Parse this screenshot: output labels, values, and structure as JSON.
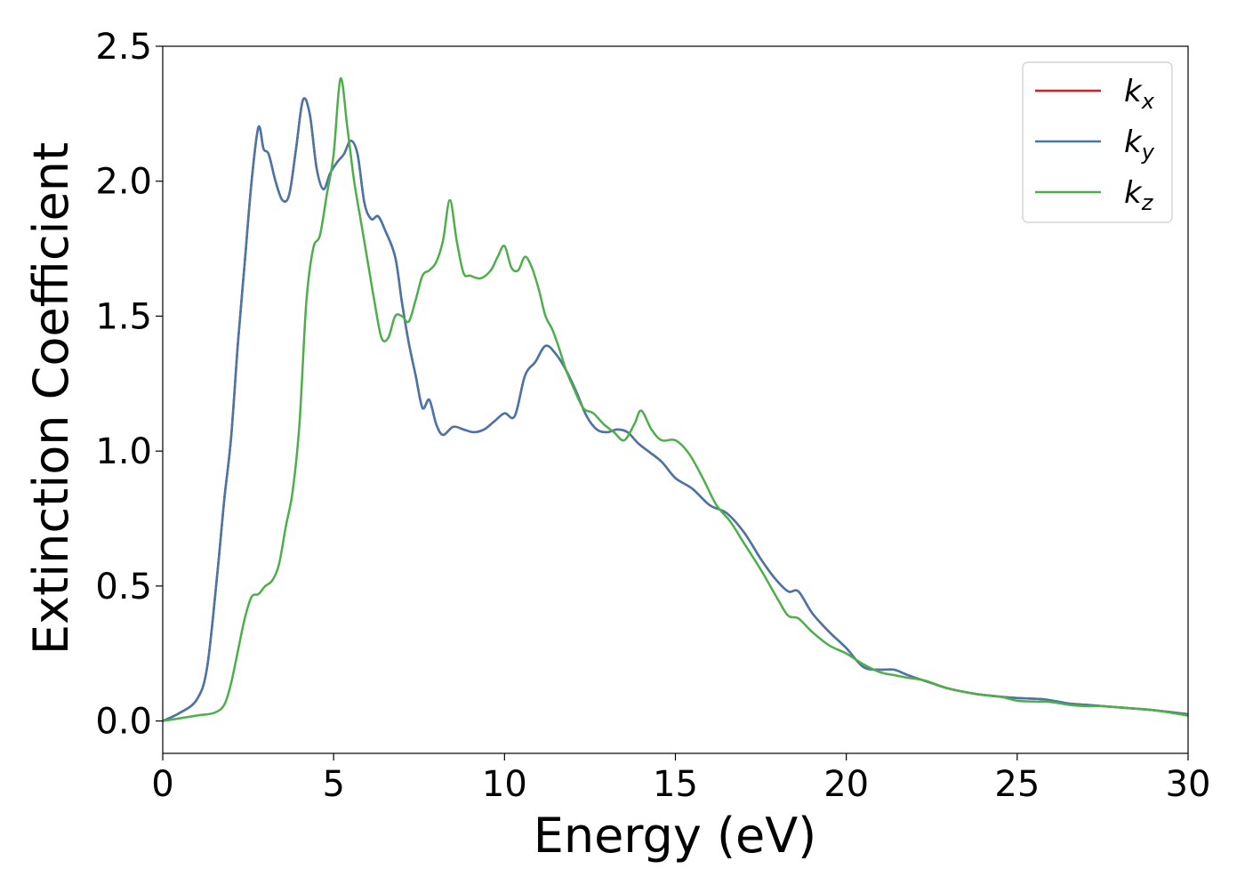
{
  "chart_data": {
    "type": "line",
    "title": "",
    "xlabel": "Energy (eV)",
    "ylabel": "Extinction Coefficient",
    "xlim": [
      0,
      30
    ],
    "ylim": [
      -0.12,
      2.5
    ],
    "xticks": [
      0,
      5,
      10,
      15,
      20,
      25,
      30
    ],
    "yticks": [
      0.0,
      0.5,
      1.0,
      1.5,
      2.0,
      2.5
    ],
    "xtick_labels": [
      "0",
      "5",
      "10",
      "15",
      "20",
      "25",
      "30"
    ],
    "ytick_labels": [
      "0.0",
      "0.5",
      "1.0",
      "1.5",
      "2.0",
      "2.5"
    ],
    "grid": false,
    "legend_position": "top-right",
    "series": [
      {
        "name": "k_x",
        "label_base": "k",
        "label_sub": "x",
        "color": "#e41a1c",
        "x": [
          0,
          0.5,
          1.0,
          1.3,
          1.6,
          1.8,
          2.0,
          2.2,
          2.4,
          2.6,
          2.8,
          2.95,
          3.1,
          3.3,
          3.5,
          3.7,
          3.9,
          4.1,
          4.3,
          4.5,
          4.7,
          4.9,
          5.1,
          5.3,
          5.5,
          5.7,
          5.9,
          6.1,
          6.3,
          6.5,
          6.8,
          7.0,
          7.2,
          7.4,
          7.6,
          7.8,
          8.0,
          8.2,
          8.5,
          8.8,
          9.1,
          9.4,
          9.7,
          10.0,
          10.3,
          10.6,
          10.9,
          11.2,
          11.5,
          11.8,
          12.1,
          12.4,
          12.7,
          13.0,
          13.3,
          13.6,
          13.9,
          14.2,
          14.6,
          15.0,
          15.5,
          16.0,
          16.5,
          17.0,
          17.5,
          17.9,
          18.3,
          18.6,
          19.0,
          19.5,
          20.0,
          20.5,
          21.0,
          21.4,
          21.8,
          22.5,
          23.0,
          23.8,
          24.5,
          25.0,
          25.8,
          26.5,
          27.0,
          27.5,
          28.0,
          29.0,
          30.0
        ],
        "y": [
          0.0,
          0.03,
          0.08,
          0.2,
          0.55,
          0.82,
          1.05,
          1.4,
          1.7,
          2.0,
          2.2,
          2.12,
          2.1,
          2.0,
          1.93,
          1.95,
          2.12,
          2.3,
          2.25,
          2.05,
          1.97,
          2.03,
          2.07,
          2.1,
          2.15,
          2.1,
          1.92,
          1.86,
          1.87,
          1.82,
          1.72,
          1.55,
          1.4,
          1.28,
          1.16,
          1.19,
          1.1,
          1.06,
          1.09,
          1.08,
          1.07,
          1.08,
          1.11,
          1.14,
          1.13,
          1.28,
          1.33,
          1.39,
          1.36,
          1.3,
          1.22,
          1.13,
          1.08,
          1.07,
          1.08,
          1.07,
          1.03,
          1.0,
          0.96,
          0.9,
          0.86,
          0.8,
          0.77,
          0.7,
          0.6,
          0.53,
          0.48,
          0.48,
          0.4,
          0.33,
          0.27,
          0.2,
          0.19,
          0.19,
          0.17,
          0.14,
          0.12,
          0.1,
          0.09,
          0.085,
          0.08,
          0.065,
          0.06,
          0.055,
          0.05,
          0.04,
          0.025
        ]
      },
      {
        "name": "k_y",
        "label_base": "k",
        "label_sub": "y",
        "color": "#4477aa",
        "x": [
          0,
          0.5,
          1.0,
          1.3,
          1.6,
          1.8,
          2.0,
          2.2,
          2.4,
          2.6,
          2.8,
          2.95,
          3.1,
          3.3,
          3.5,
          3.7,
          3.9,
          4.1,
          4.3,
          4.5,
          4.7,
          4.9,
          5.1,
          5.3,
          5.5,
          5.7,
          5.9,
          6.1,
          6.3,
          6.5,
          6.8,
          7.0,
          7.2,
          7.4,
          7.6,
          7.8,
          8.0,
          8.2,
          8.5,
          8.8,
          9.1,
          9.4,
          9.7,
          10.0,
          10.3,
          10.6,
          10.9,
          11.2,
          11.5,
          11.8,
          12.1,
          12.4,
          12.7,
          13.0,
          13.3,
          13.6,
          13.9,
          14.2,
          14.6,
          15.0,
          15.5,
          16.0,
          16.5,
          17.0,
          17.5,
          17.9,
          18.3,
          18.6,
          19.0,
          19.5,
          20.0,
          20.5,
          21.0,
          21.4,
          21.8,
          22.5,
          23.0,
          23.8,
          24.5,
          25.0,
          25.8,
          26.5,
          27.0,
          27.5,
          28.0,
          29.0,
          30.0
        ],
        "y": [
          0.0,
          0.03,
          0.08,
          0.2,
          0.55,
          0.82,
          1.05,
          1.4,
          1.7,
          2.0,
          2.2,
          2.12,
          2.1,
          2.0,
          1.93,
          1.95,
          2.12,
          2.3,
          2.25,
          2.05,
          1.97,
          2.03,
          2.07,
          2.1,
          2.15,
          2.1,
          1.92,
          1.86,
          1.87,
          1.82,
          1.72,
          1.55,
          1.4,
          1.28,
          1.16,
          1.19,
          1.1,
          1.06,
          1.09,
          1.08,
          1.07,
          1.08,
          1.11,
          1.14,
          1.13,
          1.28,
          1.33,
          1.39,
          1.36,
          1.3,
          1.22,
          1.13,
          1.08,
          1.07,
          1.08,
          1.07,
          1.03,
          1.0,
          0.96,
          0.9,
          0.86,
          0.8,
          0.77,
          0.7,
          0.6,
          0.53,
          0.48,
          0.48,
          0.4,
          0.33,
          0.27,
          0.2,
          0.19,
          0.19,
          0.17,
          0.14,
          0.12,
          0.1,
          0.09,
          0.085,
          0.08,
          0.065,
          0.06,
          0.055,
          0.05,
          0.04,
          0.025
        ]
      },
      {
        "name": "k_z",
        "label_base": "k",
        "label_sub": "z",
        "color": "#4daf4a",
        "x": [
          0,
          1.0,
          1.5,
          1.8,
          2.0,
          2.2,
          2.4,
          2.6,
          2.8,
          3.0,
          3.2,
          3.4,
          3.6,
          3.8,
          4.0,
          4.2,
          4.4,
          4.6,
          4.8,
          5.0,
          5.2,
          5.4,
          5.6,
          5.8,
          6.0,
          6.2,
          6.4,
          6.6,
          6.8,
          7.0,
          7.2,
          7.4,
          7.6,
          7.8,
          8.0,
          8.2,
          8.4,
          8.6,
          8.8,
          9.0,
          9.3,
          9.6,
          9.8,
          10.0,
          10.2,
          10.4,
          10.6,
          10.8,
          11.0,
          11.2,
          11.4,
          11.6,
          11.8,
          12.0,
          12.3,
          12.6,
          12.9,
          13.2,
          13.5,
          13.8,
          14.0,
          14.3,
          14.6,
          15.0,
          15.4,
          15.8,
          16.2,
          16.6,
          17.0,
          17.5,
          18.0,
          18.3,
          18.6,
          19.0,
          19.5,
          20.0,
          20.5,
          21.0,
          21.4,
          21.8,
          22.3,
          23.0,
          23.8,
          24.5,
          25.0,
          25.5,
          26.0,
          26.5,
          27.0,
          27.5,
          28.0,
          29.0,
          30.0
        ],
        "y": [
          0.0,
          0.02,
          0.03,
          0.06,
          0.14,
          0.26,
          0.38,
          0.46,
          0.47,
          0.5,
          0.52,
          0.58,
          0.72,
          0.85,
          1.1,
          1.55,
          1.75,
          1.8,
          1.95,
          2.1,
          2.38,
          2.2,
          2.0,
          1.85,
          1.7,
          1.55,
          1.42,
          1.42,
          1.5,
          1.5,
          1.48,
          1.56,
          1.65,
          1.67,
          1.7,
          1.78,
          1.93,
          1.78,
          1.66,
          1.65,
          1.64,
          1.67,
          1.72,
          1.76,
          1.68,
          1.67,
          1.72,
          1.68,
          1.6,
          1.5,
          1.45,
          1.38,
          1.3,
          1.24,
          1.16,
          1.14,
          1.1,
          1.07,
          1.04,
          1.1,
          1.15,
          1.08,
          1.04,
          1.04,
          0.99,
          0.9,
          0.8,
          0.74,
          0.66,
          0.56,
          0.45,
          0.39,
          0.38,
          0.33,
          0.28,
          0.25,
          0.21,
          0.18,
          0.17,
          0.16,
          0.15,
          0.12,
          0.1,
          0.09,
          0.075,
          0.072,
          0.07,
          0.06,
          0.055,
          0.055,
          0.05,
          0.04,
          0.02
        ]
      }
    ]
  }
}
